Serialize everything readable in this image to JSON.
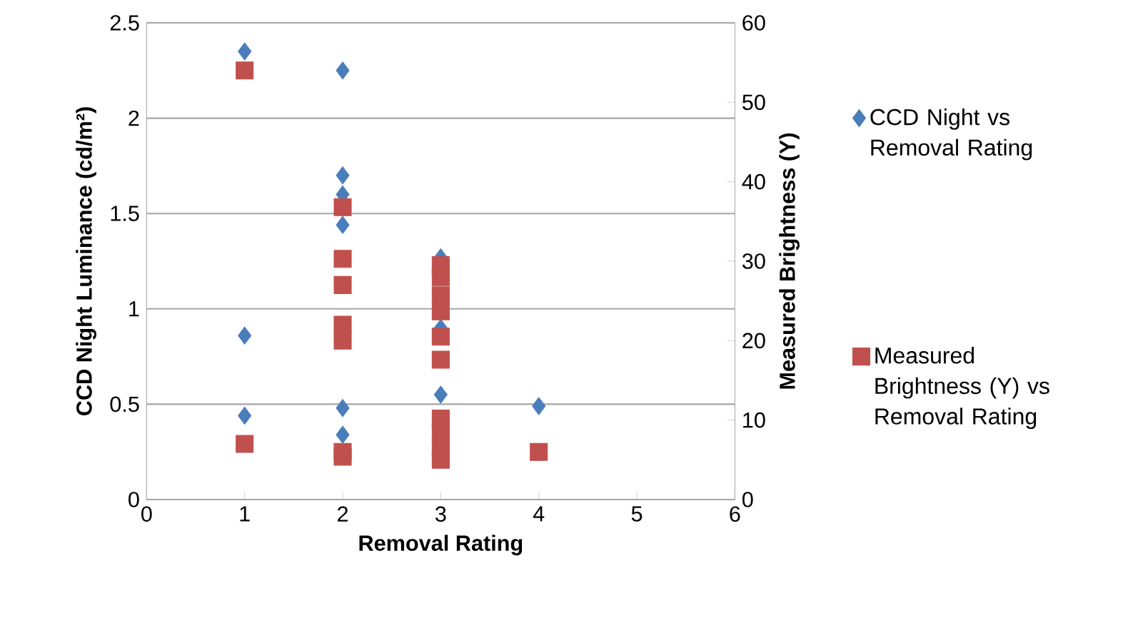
{
  "chart_data": {
    "type": "scatter",
    "xlabel": "Removal Rating",
    "ylabel": "CCD Night Luminance (cd/m²)",
    "y2label": "Measured Brightness (Y)",
    "xlim": [
      0,
      6
    ],
    "xticks": [
      0,
      1,
      2,
      3,
      4,
      5,
      6
    ],
    "ylim": [
      0,
      2.5
    ],
    "yticks": [
      0,
      0.5,
      1,
      1.5,
      2,
      2.5
    ],
    "y2lim": [
      0,
      60
    ],
    "y2ticks": [
      0,
      10,
      20,
      30,
      40,
      50,
      60
    ],
    "grid": "y",
    "legend": "right",
    "series": [
      {
        "name": "CCD Night vs Removal Rating",
        "color": "#4a7ebb",
        "marker": "diamond",
        "x": [
          1,
          1,
          1,
          2,
          2,
          2,
          2,
          2,
          2,
          3,
          3,
          3,
          4
        ],
        "values": [
          2.35,
          0.86,
          0.44,
          2.25,
          1.7,
          1.6,
          1.44,
          0.48,
          0.34,
          1.27,
          0.9,
          0.55,
          0.49
        ]
      },
      {
        "name": "Measured Brightness (Y) vs Removal Rating",
        "color": "#c0504d",
        "marker": "square",
        "axis": "y2",
        "x": [
          1,
          1,
          2,
          2,
          2,
          2,
          2,
          2,
          2,
          3,
          3,
          3,
          3,
          3,
          3,
          3,
          3,
          3,
          3,
          4
        ],
        "values": [
          54,
          7,
          36.8,
          30.3,
          27,
          22,
          20,
          6,
          5.4,
          29.5,
          28,
          25.7,
          23.7,
          20.5,
          17.6,
          10.2,
          8.4,
          6.6,
          5,
          6
        ]
      }
    ]
  }
}
